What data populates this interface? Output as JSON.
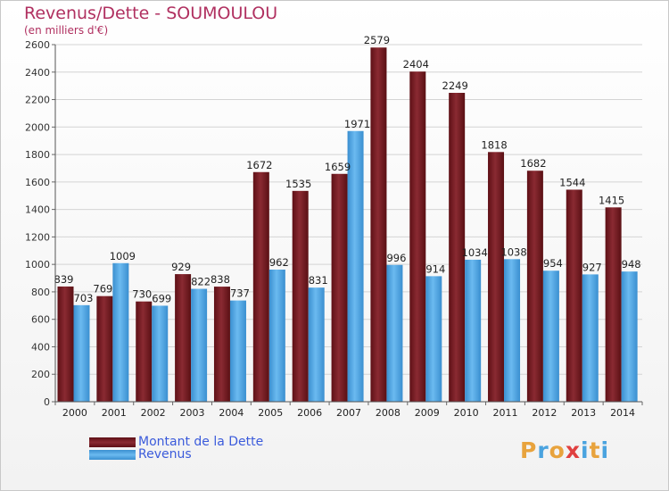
{
  "header": {
    "title": "Revenus/Dette - SOUMOULOU",
    "unit": "(en milliers d'€)"
  },
  "legend": {
    "dette_label": "Montant de la Dette",
    "revenus_label": "Revenus"
  },
  "logo": {
    "text": "Proxiti",
    "colors": [
      "#e8a33d",
      "#4aa3df",
      "#e8a33d",
      "#e04040",
      "#4aa3df",
      "#e8a33d",
      "#4aa3df"
    ]
  },
  "colors": {
    "dette": "#7a1c24",
    "revenus": "#4aa3df"
  },
  "chart_data": {
    "type": "bar",
    "categories": [
      "2000",
      "2001",
      "2002",
      "2003",
      "2004",
      "2005",
      "2006",
      "2007",
      "2008",
      "2009",
      "2010",
      "2011",
      "2012",
      "2013",
      "2014"
    ],
    "series": [
      {
        "name": "Montant de la Dette",
        "values": [
          839,
          769,
          730,
          929,
          838,
          1672,
          1535,
          1659,
          2579,
          2404,
          2249,
          1818,
          1682,
          1544,
          1415
        ]
      },
      {
        "name": "Revenus",
        "values": [
          703,
          1009,
          699,
          822,
          737,
          962,
          831,
          1971,
          996,
          914,
          1034,
          1038,
          954,
          927,
          948
        ]
      }
    ],
    "ylim": [
      0,
      2600
    ],
    "yticks": [
      0,
      200,
      400,
      600,
      800,
      1000,
      1200,
      1400,
      1600,
      1800,
      2000,
      2200,
      2400,
      2600
    ],
    "grid": true,
    "legend_position": "bottom-left"
  }
}
